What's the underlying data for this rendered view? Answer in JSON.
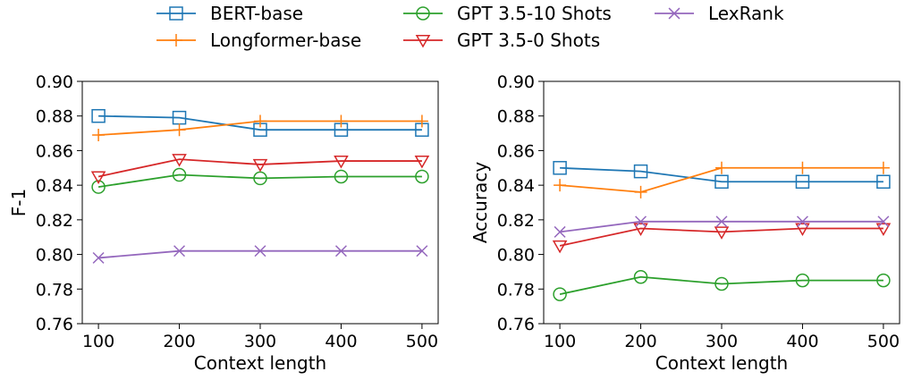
{
  "legend": {
    "entries": [
      {
        "label": "BERT-base",
        "color": "#1f77b4",
        "marker": "square"
      },
      {
        "label": "Longformer-base",
        "color": "#ff7f0e",
        "marker": "plus"
      },
      {
        "label": "GPT 3.5-10 Shots",
        "color": "#2ca02c",
        "marker": "circle"
      },
      {
        "label": "GPT 3.5-0 Shots",
        "color": "#d62728",
        "marker": "triangle-down"
      },
      {
        "label": "LexRank",
        "color": "#9467bd",
        "marker": "x"
      }
    ],
    "placement": "top-center, three columns, above both panels"
  },
  "chart_data": [
    {
      "type": "line",
      "xlabel": "Context length",
      "ylabel": "F-1",
      "x": [
        100,
        200,
        300,
        400,
        500
      ],
      "xlim": [
        80,
        520
      ],
      "ylim": [
        0.76,
        0.9
      ],
      "yticks": [
        "0.76",
        "0.78",
        "0.80",
        "0.82",
        "0.84",
        "0.86",
        "0.88",
        "0.90"
      ],
      "xticks": [
        "100",
        "200",
        "300",
        "400",
        "500"
      ],
      "grid": false,
      "series": [
        {
          "name": "BERT-base",
          "values": [
            0.88,
            0.879,
            0.872,
            0.872,
            0.872
          ]
        },
        {
          "name": "Longformer-base",
          "values": [
            0.869,
            0.872,
            0.877,
            0.877,
            0.877
          ]
        },
        {
          "name": "GPT 3.5-10 Shots",
          "values": [
            0.839,
            0.846,
            0.844,
            0.845,
            0.845
          ]
        },
        {
          "name": "GPT 3.5-0 Shots",
          "values": [
            0.845,
            0.855,
            0.852,
            0.854,
            0.854
          ]
        },
        {
          "name": "LexRank",
          "values": [
            0.798,
            0.802,
            0.802,
            0.802,
            0.802
          ]
        }
      ]
    },
    {
      "type": "line",
      "xlabel": "Context length",
      "ylabel": "Accuracy",
      "x": [
        100,
        200,
        300,
        400,
        500
      ],
      "xlim": [
        80,
        520
      ],
      "ylim": [
        0.76,
        0.9
      ],
      "yticks": [
        "0.76",
        "0.78",
        "0.80",
        "0.82",
        "0.84",
        "0.86",
        "0.88",
        "0.90"
      ],
      "xticks": [
        "100",
        "200",
        "300",
        "400",
        "500"
      ],
      "grid": false,
      "series": [
        {
          "name": "BERT-base",
          "values": [
            0.85,
            0.848,
            0.842,
            0.842,
            0.842
          ]
        },
        {
          "name": "Longformer-base",
          "values": [
            0.84,
            0.836,
            0.85,
            0.85,
            0.85
          ]
        },
        {
          "name": "GPT 3.5-10 Shots",
          "values": [
            0.777,
            0.787,
            0.783,
            0.785,
            0.785
          ]
        },
        {
          "name": "GPT 3.5-0 Shots",
          "values": [
            0.805,
            0.815,
            0.813,
            0.815,
            0.815
          ]
        },
        {
          "name": "LexRank",
          "values": [
            0.813,
            0.819,
            0.819,
            0.819,
            0.819
          ]
        }
      ]
    }
  ]
}
